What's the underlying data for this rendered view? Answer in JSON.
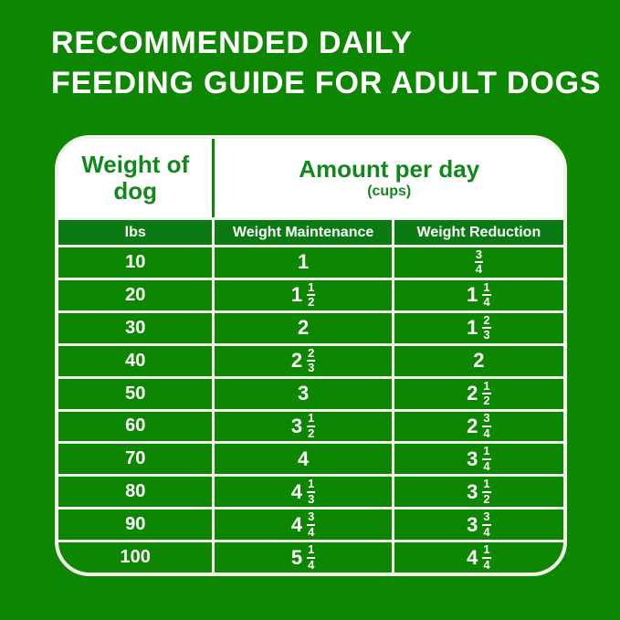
{
  "title": {
    "line1": "RECOMMENDED DAILY",
    "line2": "FEEDING GUIDE FOR ADULT DOGS"
  },
  "table": {
    "header": {
      "weight_col_line1": "Weight of",
      "weight_col_line2": "dog",
      "amount_title": "Amount per day",
      "amount_subtitle": "(cups)"
    },
    "subheader": {
      "lbs": "lbs",
      "maintenance": "Weight Maintenance",
      "reduction": "Weight Reduction"
    },
    "rows": [
      {
        "lbs": "10",
        "maintenance": "1",
        "reduction": "3/4"
      },
      {
        "lbs": "20",
        "maintenance": "1 1/2",
        "reduction": "1 1/4"
      },
      {
        "lbs": "30",
        "maintenance": "2",
        "reduction": "1 2/3"
      },
      {
        "lbs": "40",
        "maintenance": "2 2/3",
        "reduction": "2"
      },
      {
        "lbs": "50",
        "maintenance": "3",
        "reduction": "2 1/2"
      },
      {
        "lbs": "60",
        "maintenance": "3 1/2",
        "reduction": "2 3/4"
      },
      {
        "lbs": "70",
        "maintenance": "4",
        "reduction": "3 1/4"
      },
      {
        "lbs": "80",
        "maintenance": "4 1/3",
        "reduction": "3 1/2"
      },
      {
        "lbs": "90",
        "maintenance": "4 3/4",
        "reduction": "3 3/4"
      },
      {
        "lbs": "100",
        "maintenance": "5 1/4",
        "reduction": "4 1/4"
      }
    ]
  },
  "colors": {
    "background_green": "#0d8601",
    "subheader_green": "#0b7a12",
    "header_text_green": "#12871b",
    "grid_line": "#f2f4ec",
    "text_white": "#ffffff"
  },
  "chart_data": {
    "type": "table",
    "title": "RECOMMENDED DAILY FEEDING GUIDE FOR ADULT DOGS",
    "columns": [
      "Weight of dog (lbs)",
      "Weight Maintenance (cups/day)",
      "Weight Reduction (cups/day)"
    ],
    "rows": [
      [
        10,
        "1",
        "3/4"
      ],
      [
        20,
        "1 1/2",
        "1 1/4"
      ],
      [
        30,
        "2",
        "1 2/3"
      ],
      [
        40,
        "2 2/3",
        "2"
      ],
      [
        50,
        "3",
        "2 1/2"
      ],
      [
        60,
        "3 1/2",
        "2 3/4"
      ],
      [
        70,
        "4",
        "3 1/4"
      ],
      [
        80,
        "4 1/3",
        "3 1/2"
      ],
      [
        90,
        "4 3/4",
        "3 3/4"
      ],
      [
        100,
        "5 1/4",
        "4 1/4"
      ]
    ]
  }
}
